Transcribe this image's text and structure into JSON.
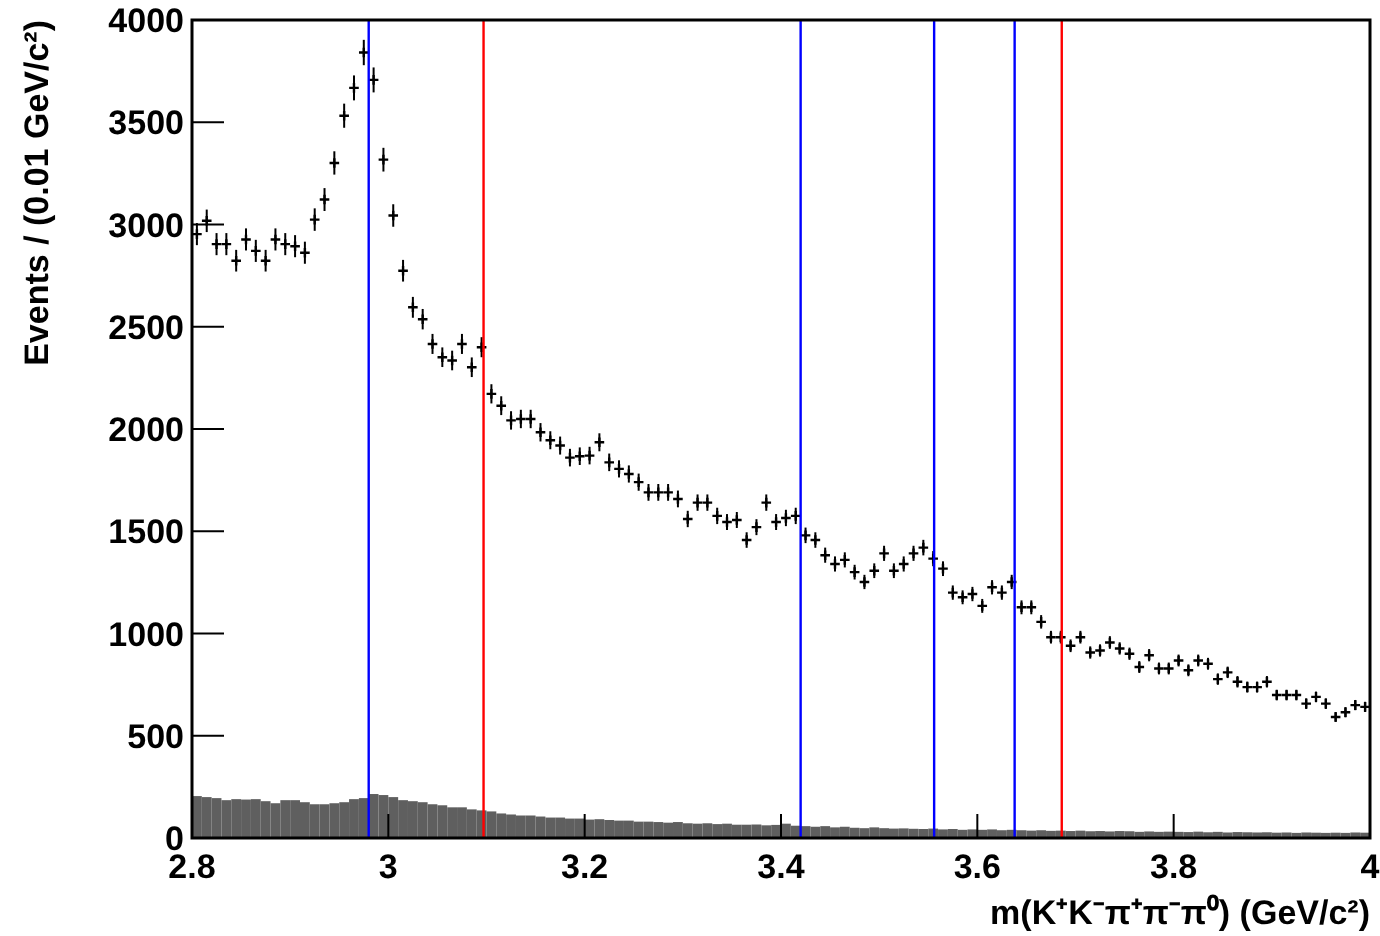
{
  "chart_data": {
    "type": "scatter",
    "xlabel": "m(K⁺K⁻π⁺π⁻π⁰) (GeV/c²)",
    "ylabel": "Events / (0.01 GeV/c²)",
    "xlim": [
      2.8,
      4
    ],
    "xticks": [
      2.8,
      3,
      3.2,
      3.4,
      3.6,
      3.8,
      4
    ],
    "ylim": [
      0,
      4000
    ],
    "yticks": [
      0,
      500,
      1000,
      1500,
      2000,
      2500,
      3000,
      3500,
      4000
    ],
    "grid": false,
    "marker": "cross",
    "ref_lines": [
      {
        "axis": "x",
        "value": 2.98,
        "color": "#0000ff"
      },
      {
        "axis": "x",
        "value": 3.097,
        "color": "#ff0000"
      },
      {
        "axis": "x",
        "value": 3.42,
        "color": "#0000ff"
      },
      {
        "axis": "x",
        "value": 3.556,
        "color": "#0000ff"
      },
      {
        "axis": "x",
        "value": 3.638,
        "color": "#0000ff"
      },
      {
        "axis": "x",
        "value": 3.686,
        "color": "#ff0000"
      }
    ],
    "series": [
      {
        "type": "histogram",
        "color": "#5f5f5f",
        "bins": [
          2.8,
          2.81,
          2.82,
          2.83,
          2.84,
          2.85,
          2.86,
          2.87,
          2.88,
          2.89,
          2.9,
          2.91,
          2.92,
          2.93,
          2.94,
          2.95,
          2.96,
          2.97,
          2.98,
          2.99,
          3.0,
          3.01,
          3.02,
          3.03,
          3.04,
          3.05,
          3.06,
          3.07,
          3.08,
          3.09,
          3.1,
          3.11,
          3.12,
          3.13,
          3.14,
          3.15,
          3.16,
          3.17,
          3.18,
          3.19,
          3.2,
          3.21,
          3.22,
          3.23,
          3.24,
          3.25,
          3.26,
          3.27,
          3.28,
          3.29,
          3.3,
          3.31,
          3.32,
          3.33,
          3.34,
          3.35,
          3.36,
          3.37,
          3.38,
          3.39,
          3.4,
          3.41,
          3.42,
          3.43,
          3.44,
          3.45,
          3.46,
          3.47,
          3.48,
          3.49,
          3.5,
          3.51,
          3.52,
          3.53,
          3.54,
          3.55,
          3.56,
          3.57,
          3.58,
          3.59,
          3.6,
          3.61,
          3.62,
          3.63,
          3.64,
          3.65,
          3.66,
          3.67,
          3.68,
          3.69,
          3.7,
          3.71,
          3.72,
          3.73,
          3.74,
          3.75,
          3.76,
          3.77,
          3.78,
          3.79,
          3.8,
          3.81,
          3.82,
          3.83,
          3.84,
          3.85,
          3.86,
          3.87,
          3.88,
          3.89,
          3.9,
          3.91,
          3.92,
          3.93,
          3.94,
          3.95,
          3.96,
          3.97,
          3.98,
          3.99,
          4.0
        ],
        "values": [
          205,
          200,
          195,
          185,
          190,
          188,
          190,
          180,
          170,
          185,
          185,
          175,
          165,
          165,
          170,
          175,
          190,
          195,
          215,
          210,
          200,
          185,
          180,
          175,
          165,
          160,
          150,
          150,
          140,
          135,
          130,
          120,
          115,
          110,
          110,
          105,
          100,
          100,
          95,
          95,
          90,
          92,
          88,
          85,
          85,
          80,
          80,
          78,
          75,
          78,
          72,
          70,
          72,
          68,
          70,
          65,
          65,
          66,
          62,
          64,
          70,
          60,
          58,
          55,
          58,
          52,
          55,
          50,
          48,
          52,
          48,
          46,
          47,
          45,
          44,
          46,
          42,
          44,
          40,
          42,
          40,
          42,
          38,
          40,
          38,
          36,
          38,
          35,
          36,
          34,
          36,
          33,
          34,
          32,
          34,
          33,
          30,
          32,
          30,
          31,
          30,
          29,
          31,
          28,
          30,
          27,
          29,
          28,
          27,
          28,
          26,
          27,
          25,
          27,
          26,
          25,
          26,
          25,
          27,
          26
        ]
      },
      {
        "color": "#000000",
        "x": [
          2.805,
          2.815,
          2.825,
          2.835,
          2.845,
          2.855,
          2.865,
          2.875,
          2.885,
          2.895,
          2.905,
          2.915,
          2.925,
          2.935,
          2.945,
          2.955,
          2.965,
          2.975,
          2.985,
          2.995,
          3.005,
          3.015,
          3.025,
          3.035,
          3.045,
          3.055,
          3.065,
          3.075,
          3.085,
          3.095,
          3.105,
          3.115,
          3.125,
          3.135,
          3.145,
          3.155,
          3.165,
          3.175,
          3.185,
          3.195,
          3.205,
          3.215,
          3.225,
          3.235,
          3.245,
          3.255,
          3.265,
          3.275,
          3.285,
          3.295,
          3.305,
          3.315,
          3.325,
          3.335,
          3.345,
          3.355,
          3.365,
          3.375,
          3.385,
          3.395,
          3.405,
          3.415,
          3.425,
          3.435,
          3.445,
          3.455,
          3.465,
          3.475,
          3.485,
          3.495,
          3.505,
          3.515,
          3.525,
          3.535,
          3.545,
          3.555,
          3.565,
          3.575,
          3.585,
          3.595,
          3.605,
          3.615,
          3.625,
          3.635,
          3.645,
          3.655,
          3.665,
          3.675,
          3.685,
          3.695,
          3.705,
          3.715,
          3.725,
          3.735,
          3.745,
          3.755,
          3.765,
          3.775,
          3.785,
          3.795,
          3.805,
          3.815,
          3.825,
          3.835,
          3.845,
          3.855,
          3.865,
          3.875,
          3.885,
          3.895,
          3.905,
          3.915,
          3.925,
          3.935,
          3.945,
          3.955,
          3.965,
          3.975,
          3.985,
          3.995
        ],
        "values": [
          2953,
          3018,
          2904,
          2904,
          2823,
          2927,
          2871,
          2823,
          2927,
          2904,
          2894,
          2862,
          3024,
          3122,
          3301,
          3532,
          3668,
          3841,
          3707,
          3317,
          3044,
          2774,
          2595,
          2537,
          2416,
          2351,
          2335,
          2416,
          2302,
          2400,
          2172,
          2114,
          2042,
          2049,
          2049,
          1984,
          1945,
          1919,
          1860,
          1867,
          1870,
          1935,
          1837,
          1805,
          1780,
          1740,
          1690,
          1690,
          1690,
          1658,
          1560,
          1640,
          1640,
          1575,
          1545,
          1555,
          1457,
          1520,
          1640,
          1545,
          1565,
          1575,
          1480,
          1457,
          1383,
          1340,
          1360,
          1300,
          1252,
          1307,
          1392,
          1307,
          1340,
          1392,
          1420,
          1366,
          1317,
          1200,
          1177,
          1193,
          1135,
          1226,
          1200,
          1252,
          1128,
          1128,
          1057,
          982,
          982,
          940,
          982,
          907,
          917,
          956,
          927,
          901,
          836,
          894,
          829,
          829,
          868,
          820,
          868,
          852,
          777,
          810,
          764,
          738,
          738,
          764,
          699,
          699,
          699,
          657,
          690,
          657,
          592,
          615,
          650,
          641
        ],
        "errors": [
          54,
          55,
          54,
          54,
          53,
          54,
          54,
          53,
          54,
          54,
          54,
          54,
          55,
          56,
          57,
          59,
          61,
          62,
          61,
          58,
          55,
          53,
          51,
          50,
          49,
          48,
          48,
          49,
          48,
          49,
          47,
          46,
          45,
          45,
          45,
          45,
          44,
          44,
          43,
          43,
          43,
          44,
          43,
          42,
          42,
          42,
          41,
          41,
          41,
          41,
          40,
          40,
          40,
          40,
          39,
          39,
          38,
          39,
          40,
          39,
          40,
          40,
          38,
          38,
          37,
          37,
          37,
          36,
          35,
          36,
          37,
          36,
          37,
          37,
          38,
          37,
          36,
          35,
          34,
          35,
          34,
          35,
          35,
          35,
          34,
          34,
          33,
          31,
          31,
          31,
          31,
          30,
          30,
          31,
          30,
          30,
          29,
          30,
          29,
          29,
          29,
          29,
          29,
          29,
          28,
          28,
          28,
          27,
          27,
          28,
          26,
          26,
          26,
          26,
          26,
          26,
          24,
          25,
          25,
          25
        ]
      }
    ]
  }
}
